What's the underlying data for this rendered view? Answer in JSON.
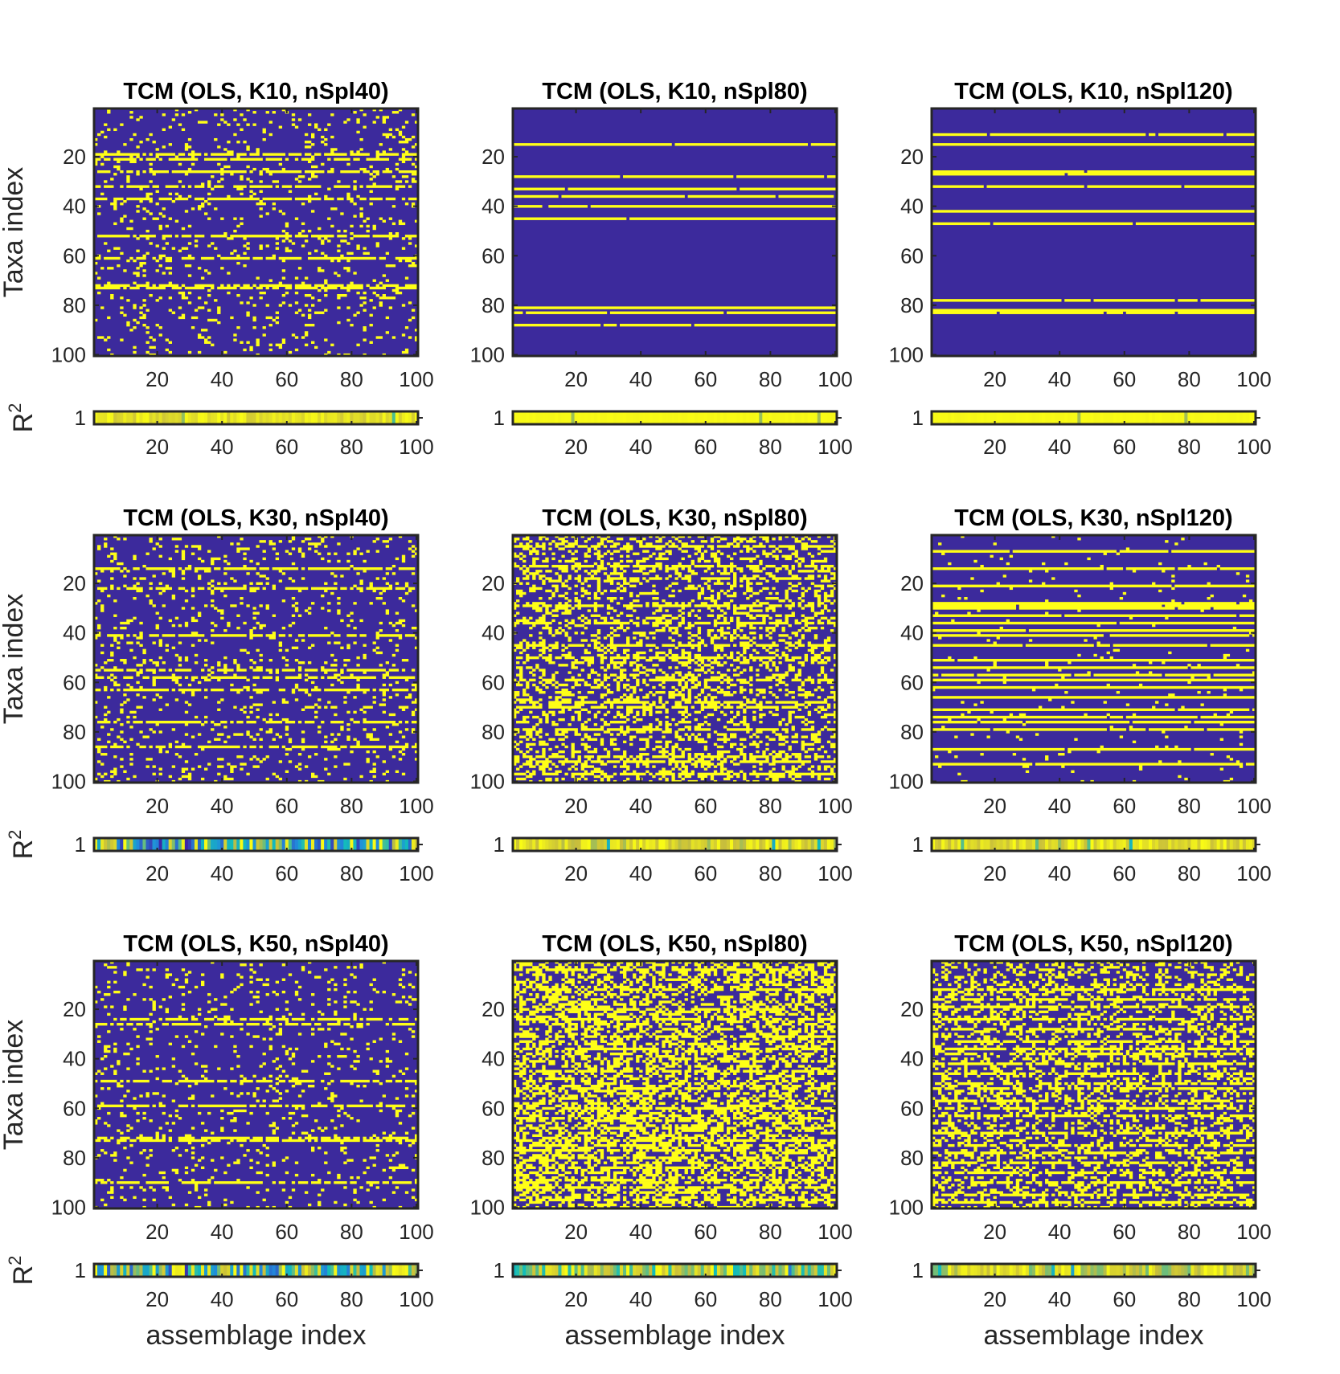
{
  "colors": {
    "background": "#3c2a9c",
    "foreground": "#ffff17"
  },
  "chart_data": [
    {
      "type": "heatmap",
      "title": "TCM (OLS, K10, nSpl40)",
      "xlabel": "",
      "ylabel": "Taxa index",
      "r2_label": "R2",
      "x_ticks": [
        "20",
        "40",
        "60",
        "80",
        "100"
      ],
      "y_ticks": [
        "20",
        "40",
        "60",
        "80",
        "100"
      ],
      "r2_y_tick": "1",
      "x_range": [
        1,
        100
      ],
      "y_range": [
        1,
        100
      ],
      "pattern": "sparse",
      "density": 0.09,
      "row_lines": [
        19,
        21,
        26,
        32,
        37,
        52,
        61,
        72,
        73
      ],
      "r2_mean": 0.9
    },
    {
      "type": "heatmap",
      "title": "TCM (OLS, K10, nSpl80)",
      "xlabel": "",
      "ylabel": "",
      "r2_label": "",
      "x_ticks": [
        "20",
        "40",
        "60",
        "80",
        "100"
      ],
      "y_ticks": [
        "20",
        "40",
        "60",
        "80",
        "100"
      ],
      "r2_y_tick": "1",
      "x_range": [
        1,
        100
      ],
      "y_range": [
        1,
        100
      ],
      "pattern": "lines",
      "density": 0.0,
      "row_lines": [
        15,
        28,
        33,
        36,
        40,
        45,
        81,
        83,
        88
      ],
      "r2_mean": 0.99
    },
    {
      "type": "heatmap",
      "title": "TCM (OLS, K10, nSpl120)",
      "xlabel": "",
      "ylabel": "",
      "r2_label": "",
      "x_ticks": [
        "20",
        "40",
        "60",
        "80",
        "100"
      ],
      "y_ticks": [
        "20",
        "40",
        "60",
        "80",
        "100"
      ],
      "r2_y_tick": "1",
      "x_range": [
        1,
        100
      ],
      "y_range": [
        1,
        100
      ],
      "pattern": "lines",
      "density": 0.0,
      "row_lines": [
        11,
        15,
        26,
        27,
        32,
        42,
        47,
        78,
        82,
        83
      ],
      "r2_mean": 0.99
    },
    {
      "type": "heatmap",
      "title": "TCM (OLS, K30, nSpl40)",
      "xlabel": "",
      "ylabel": "Taxa index",
      "r2_label": "R2",
      "x_ticks": [
        "20",
        "40",
        "60",
        "80",
        "100"
      ],
      "y_ticks": [
        "20",
        "40",
        "60",
        "80",
        "100"
      ],
      "r2_y_tick": "1",
      "x_range": [
        1,
        100
      ],
      "y_range": [
        1,
        100
      ],
      "pattern": "sparse",
      "density": 0.11,
      "row_lines": [
        14,
        22,
        41,
        55,
        58,
        63,
        76,
        86
      ],
      "r2_mean": 0.55
    },
    {
      "type": "heatmap",
      "title": "TCM (OLS, K30, nSpl80)",
      "xlabel": "",
      "ylabel": "",
      "r2_label": "",
      "x_ticks": [
        "20",
        "40",
        "60",
        "80",
        "100"
      ],
      "y_ticks": [
        "20",
        "40",
        "60",
        "80",
        "100"
      ],
      "r2_y_tick": "1",
      "x_range": [
        1,
        100
      ],
      "y_range": [
        1,
        100
      ],
      "pattern": "dense",
      "density": 0.3,
      "row_lines": [
        5,
        13,
        18,
        29,
        36,
        45,
        50,
        59,
        68,
        70,
        79,
        90,
        92,
        97
      ],
      "r2_mean": 0.85
    },
    {
      "type": "heatmap",
      "title": "TCM (OLS, K30, nSpl120)",
      "xlabel": "",
      "ylabel": "",
      "r2_label": "",
      "x_ticks": [
        "20",
        "40",
        "60",
        "80",
        "100"
      ],
      "y_ticks": [
        "20",
        "40",
        "60",
        "80",
        "100"
      ],
      "r2_y_tick": "1",
      "x_range": [
        1,
        100
      ],
      "y_range": [
        1,
        100
      ],
      "pattern": "lines",
      "density": 0.03,
      "row_lines": [
        7,
        14,
        21,
        28,
        29,
        30,
        33,
        36,
        39,
        41,
        45,
        51,
        54,
        57,
        59,
        62,
        66,
        71,
        74,
        76,
        79,
        87,
        93
      ],
      "r2_mean": 0.88
    },
    {
      "type": "heatmap",
      "title": "TCM (OLS, K50, nSpl40)",
      "xlabel": "assemblage index",
      "ylabel": "Taxa index",
      "r2_label": "R2",
      "x_ticks": [
        "20",
        "40",
        "60",
        "80",
        "100"
      ],
      "y_ticks": [
        "20",
        "40",
        "60",
        "80",
        "100"
      ],
      "r2_y_tick": "1",
      "x_range": [
        1,
        100
      ],
      "y_range": [
        1,
        100
      ],
      "pattern": "sparse",
      "density": 0.08,
      "row_lines": [
        24,
        26,
        49,
        59,
        72,
        73,
        90
      ],
      "r2_mean": 0.6
    },
    {
      "type": "heatmap",
      "title": "TCM (OLS, K50, nSpl80)",
      "xlabel": "assemblage index",
      "ylabel": "",
      "r2_label": "",
      "x_ticks": [
        "20",
        "40",
        "60",
        "80",
        "100"
      ],
      "y_ticks": [
        "20",
        "40",
        "60",
        "80",
        "100"
      ],
      "r2_y_tick": "1",
      "x_range": [
        1,
        100
      ],
      "y_range": [
        1,
        100
      ],
      "pattern": "dense",
      "density": 0.45,
      "row_lines": [
        4,
        12,
        20,
        24,
        31,
        36,
        45,
        52,
        60,
        64,
        68,
        73,
        75,
        77,
        80,
        84,
        89,
        92,
        97
      ],
      "r2_mean": 0.75
    },
    {
      "type": "heatmap",
      "title": "TCM (OLS, K50, nSpl120)",
      "xlabel": "assemblage index",
      "ylabel": "",
      "r2_label": "",
      "x_ticks": [
        "20",
        "40",
        "60",
        "80",
        "100"
      ],
      "y_ticks": [
        "20",
        "40",
        "60",
        "80",
        "100"
      ],
      "r2_y_tick": "1",
      "x_range": [
        1,
        100
      ],
      "y_range": [
        1,
        100
      ],
      "pattern": "dense",
      "density": 0.28,
      "row_lines": [
        12,
        16,
        19,
        24,
        28,
        33,
        36,
        38,
        42,
        46,
        50,
        52,
        57,
        60,
        63,
        70,
        75,
        78,
        82,
        86,
        90,
        95,
        98
      ],
      "r2_mean": 0.82
    }
  ]
}
